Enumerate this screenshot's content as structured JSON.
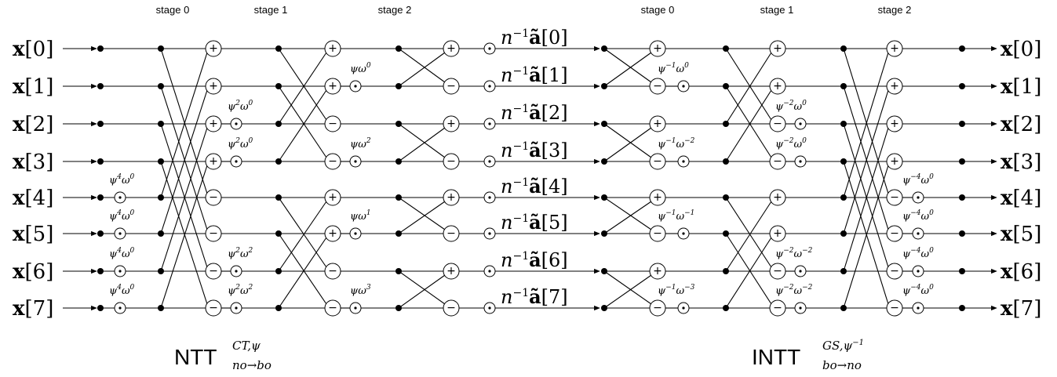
{
  "stage_headers": {
    "ntt": [
      "stage 0",
      "stage 1",
      "stage 2"
    ],
    "intt": [
      "stage 0",
      "stage 1",
      "stage 2"
    ]
  },
  "inputs": {
    "symbol": "x",
    "labels": [
      "[0]",
      "[1]",
      "[2]",
      "[3]",
      "[4]",
      "[5]",
      "[6]",
      "[7]"
    ]
  },
  "middle": {
    "prefix": "n",
    "prefix_sup": "−1",
    "symbol": "ã",
    "labels": [
      "[0]",
      "[1]",
      "[2]",
      "[3]",
      "[4]",
      "[5]",
      "[6]",
      "[7]"
    ]
  },
  "outputs": {
    "symbol": "x",
    "labels": [
      "[0]",
      "[1]",
      "[2]",
      "[3]",
      "[4]",
      "[5]",
      "[6]",
      "[7]"
    ]
  },
  "twiddles": {
    "ntt_pre": [
      null,
      null,
      null,
      null,
      {
        "a": "ψ",
        "ae": "4",
        "b": "ω",
        "be": "0"
      },
      {
        "a": "ψ",
        "ae": "4",
        "b": "ω",
        "be": "0"
      },
      {
        "a": "ψ",
        "ae": "4",
        "b": "ω",
        "be": "0"
      },
      {
        "a": "ψ",
        "ae": "4",
        "b": "ω",
        "be": "0"
      }
    ],
    "ntt_s1": [
      null,
      null,
      {
        "a": "ψ",
        "ae": "2",
        "b": "ω",
        "be": "0"
      },
      {
        "a": "ψ",
        "ae": "2",
        "b": "ω",
        "be": "0"
      },
      null,
      null,
      {
        "a": "ψ",
        "ae": "2",
        "b": "ω",
        "be": "2"
      },
      {
        "a": "ψ",
        "ae": "2",
        "b": "ω",
        "be": "2"
      }
    ],
    "ntt_s2": [
      null,
      {
        "a": "ψ",
        "ae": "",
        "b": "ω",
        "be": "0"
      },
      null,
      {
        "a": "ψ",
        "ae": "",
        "b": "ω",
        "be": "2"
      },
      null,
      {
        "a": "ψ",
        "ae": "",
        "b": "ω",
        "be": "1"
      },
      null,
      {
        "a": "ψ",
        "ae": "",
        "b": "ω",
        "be": "3"
      }
    ],
    "intt_s0": [
      null,
      {
        "a": "ψ",
        "ae": "−1",
        "b": "ω",
        "be": "0"
      },
      null,
      {
        "a": "ψ",
        "ae": "−1",
        "b": "ω",
        "be": "−2"
      },
      null,
      {
        "a": "ψ",
        "ae": "−1",
        "b": "ω",
        "be": "−1"
      },
      null,
      {
        "a": "ψ",
        "ae": "−1",
        "b": "ω",
        "be": "−3"
      }
    ],
    "intt_s1": [
      null,
      null,
      {
        "a": "ψ",
        "ae": "−2",
        "b": "ω",
        "be": "0"
      },
      {
        "a": "ψ",
        "ae": "−2",
        "b": "ω",
        "be": "0"
      },
      null,
      null,
      {
        "a": "ψ",
        "ae": "−2",
        "b": "ω",
        "be": "−2"
      },
      {
        "a": "ψ",
        "ae": "−2",
        "b": "ω",
        "be": "−2"
      }
    ],
    "intt_s2": [
      null,
      null,
      null,
      null,
      {
        "a": "ψ",
        "ae": "−4",
        "b": "ω",
        "be": "0"
      },
      {
        "a": "ψ",
        "ae": "−4",
        "b": "ω",
        "be": "0"
      },
      {
        "a": "ψ",
        "ae": "−4",
        "b": "ω",
        "be": "0"
      },
      {
        "a": "ψ",
        "ae": "−4",
        "b": "ω",
        "be": "0"
      }
    ]
  },
  "titles": {
    "ntt": {
      "base": "NTT",
      "sup": "CT,ψ",
      "sub": "no→bo"
    },
    "intt": {
      "base": "INTT",
      "sup": "GS,ψ",
      "sup2": "−1",
      "sub": "bo→no"
    }
  }
}
